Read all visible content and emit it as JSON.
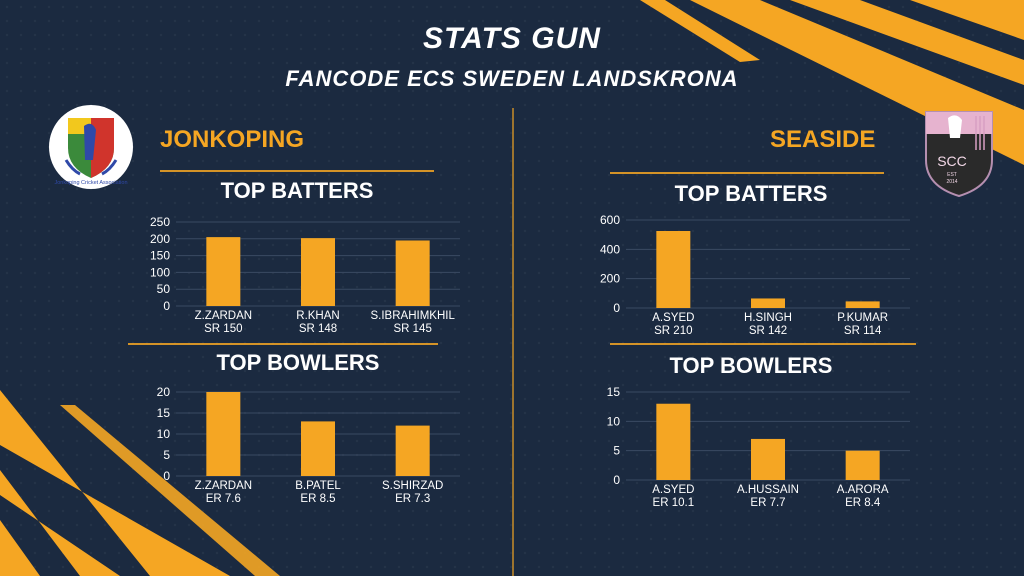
{
  "header": {
    "title": "STATS GUN",
    "subtitle": "FANCODE ECS SWEDEN LANDSKRONA"
  },
  "teams": {
    "left": {
      "name": "JONKOPING",
      "logo_text": "Jonkoping Cricket Association"
    },
    "right": {
      "name": "SEASIDE",
      "logo_text": "SCC",
      "logo_est": "EST",
      "logo_year": "2014"
    }
  },
  "colors": {
    "background": "#1b2a40",
    "accent": "#f5a623",
    "bar": "#f5a623",
    "grid": "#3a4a62",
    "text": "#ffffff"
  },
  "chart_data": [
    {
      "team": "JONKOPING",
      "title": "TOP BATTERS",
      "type": "bar",
      "categories": [
        "Z.ZARDAN",
        "R.KHAN",
        "S.IBRAHIMKHIL"
      ],
      "sublabels": [
        "SR 150",
        "SR 148",
        "SR 145"
      ],
      "values": [
        205,
        202,
        195
      ],
      "yticks": [
        0,
        50,
        100,
        150,
        200,
        250
      ],
      "ylim": [
        0,
        250
      ],
      "grid": true
    },
    {
      "team": "JONKOPING",
      "title": "TOP BOWLERS",
      "type": "bar",
      "categories": [
        "Z.ZARDAN",
        "B.PATEL",
        "S.SHIRZAD"
      ],
      "sublabels": [
        "ER 7.6",
        "ER 8.5",
        "ER 7.3"
      ],
      "values": [
        20,
        13,
        12
      ],
      "yticks": [
        0,
        5,
        10,
        15,
        20
      ],
      "ylim": [
        0,
        20
      ],
      "grid": true
    },
    {
      "team": "SEASIDE",
      "title": "TOP BATTERS",
      "type": "bar",
      "categories": [
        "A.SYED",
        "H.SINGH",
        "P.KUMAR"
      ],
      "sublabels": [
        "SR 210",
        "SR 142",
        "SR 114"
      ],
      "values": [
        525,
        65,
        45
      ],
      "yticks": [
        0,
        200,
        400,
        600
      ],
      "ylim": [
        0,
        600
      ],
      "grid": true
    },
    {
      "team": "SEASIDE",
      "title": "TOP BOWLERS",
      "type": "bar",
      "categories": [
        "A.SYED",
        "A.HUSSAIN",
        "A.ARORA"
      ],
      "sublabels": [
        "ER 10.1",
        "ER 7.7",
        "ER 8.4"
      ],
      "values": [
        13,
        7,
        5
      ],
      "yticks": [
        0,
        5,
        10,
        15
      ],
      "ylim": [
        0,
        15
      ],
      "grid": true
    }
  ]
}
